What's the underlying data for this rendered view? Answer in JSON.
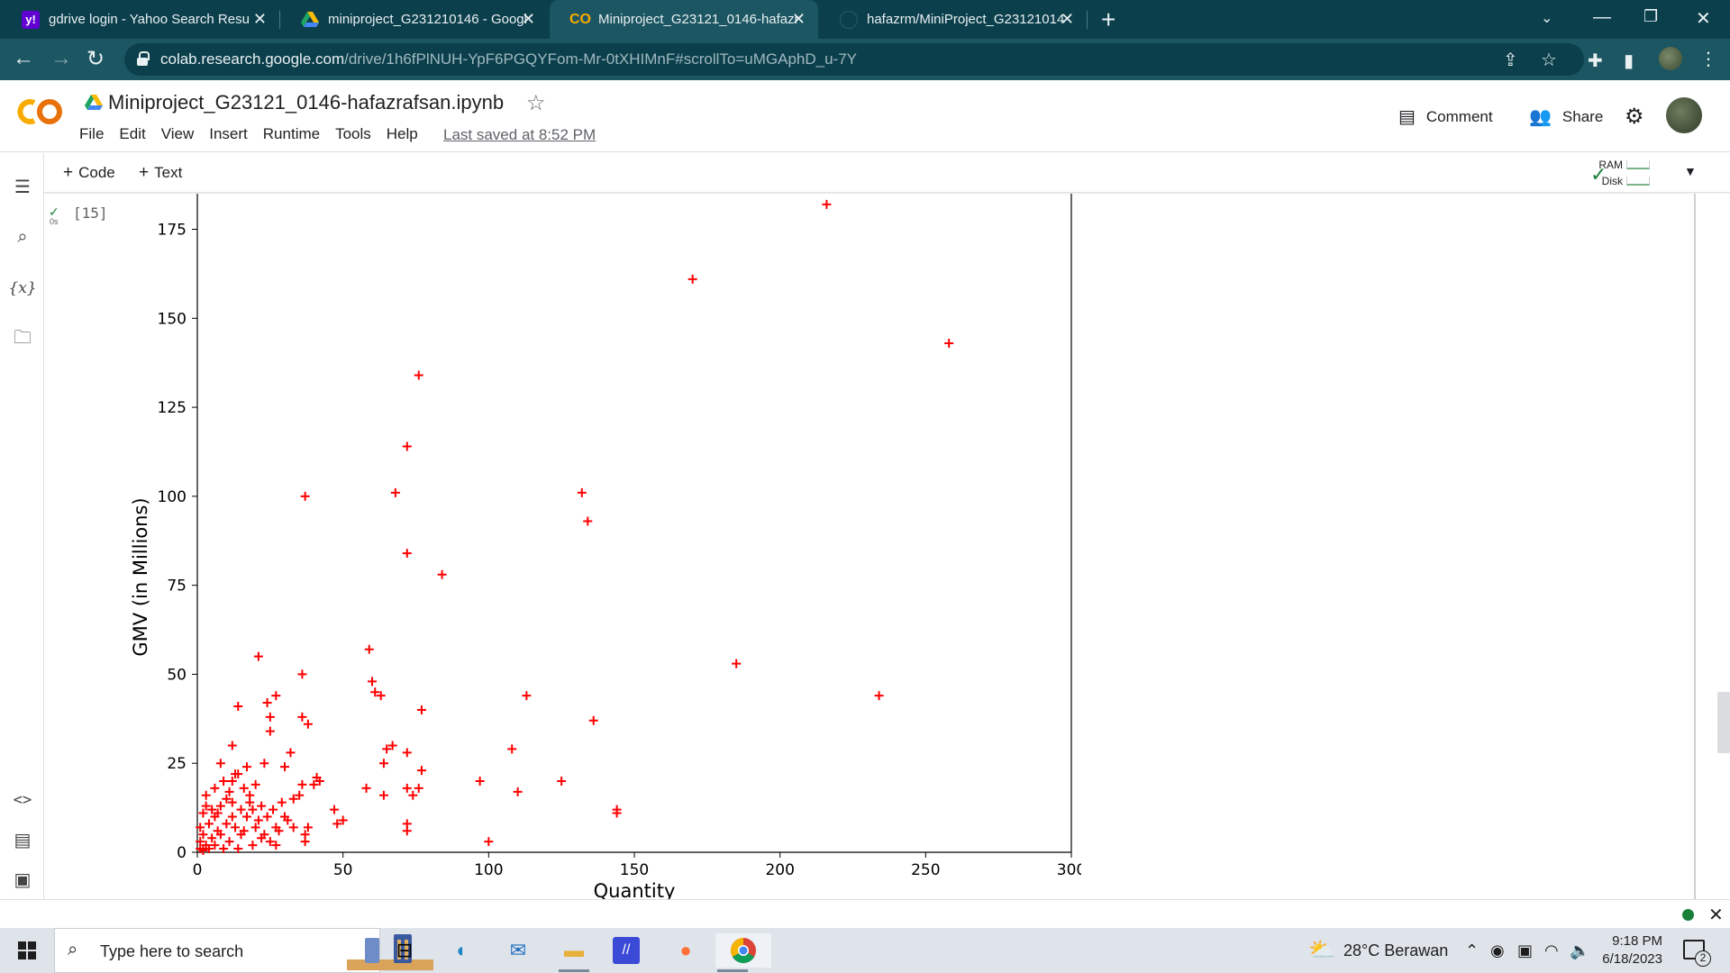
{
  "browser": {
    "tabs": [
      {
        "title": "gdrive login - Yahoo Search Resu",
        "icon": "yahoo-icon",
        "active": false
      },
      {
        "title": "miniproject_G231210146 - Googl",
        "icon": "google-drive-icon",
        "active": false
      },
      {
        "title": "Miniproject_G23121_0146-hafazr",
        "icon": "colab-icon",
        "active": true
      },
      {
        "title": "hafazrm/MiniProject_G23121014",
        "icon": "github-icon",
        "active": false
      }
    ],
    "url_host": "colab.research.google.com",
    "url_rest": "/drive/1h6fPlNUH-YpF6PGQYFom-Mr-0tXHIMnF#scrollTo=uMGAphD_u-7Y"
  },
  "colab": {
    "notebook_title": "Miniproject_G23121_0146-hafazrafsan.ipynb",
    "menu": [
      "File",
      "Edit",
      "View",
      "Insert",
      "Runtime",
      "Tools",
      "Help"
    ],
    "last_saved": "Last saved at 8:52 PM",
    "comment_label": "Comment",
    "share_label": "Share",
    "toolbar": {
      "code_label": "Code",
      "text_label": "Text",
      "ram_label": "RAM",
      "disk_label": "Disk"
    },
    "cell": {
      "exec_count": "[15]",
      "run_time": "0s"
    }
  },
  "chart_data": {
    "type": "scatter",
    "xlabel": "Quantity",
    "ylabel": "GMV (in Millions)",
    "xlim": [
      0,
      300
    ],
    "ylim": [
      0,
      185
    ],
    "xticks": [
      0,
      50,
      100,
      150,
      200,
      250,
      300
    ],
    "yticks": [
      0,
      25,
      50,
      75,
      100,
      125,
      150,
      175
    ],
    "marker": "+",
    "color": "#ff0000",
    "points": [
      [
        216,
        182
      ],
      [
        170,
        161
      ],
      [
        258,
        143
      ],
      [
        76,
        134
      ],
      [
        72,
        114
      ],
      [
        37,
        100
      ],
      [
        68,
        101
      ],
      [
        132,
        101
      ],
      [
        134,
        93
      ],
      [
        72,
        84
      ],
      [
        84,
        78
      ],
      [
        59,
        57
      ],
      [
        185,
        53
      ],
      [
        21,
        55
      ],
      [
        36,
        50
      ],
      [
        60,
        48
      ],
      [
        61,
        45
      ],
      [
        63,
        44
      ],
      [
        113,
        44
      ],
      [
        234,
        44
      ],
      [
        27,
        44
      ],
      [
        24,
        42
      ],
      [
        14,
        41
      ],
      [
        77,
        40
      ],
      [
        36,
        38
      ],
      [
        25,
        38
      ],
      [
        38,
        36
      ],
      [
        136,
        37
      ],
      [
        25,
        34
      ],
      [
        67,
        30
      ],
      [
        65,
        29
      ],
      [
        108,
        29
      ],
      [
        12,
        30
      ],
      [
        72,
        28
      ],
      [
        32,
        28
      ],
      [
        64,
        25
      ],
      [
        8,
        25
      ],
      [
        23,
        25
      ],
      [
        17,
        24
      ],
      [
        30,
        24
      ],
      [
        77,
        23
      ],
      [
        13,
        22
      ],
      [
        12,
        20
      ],
      [
        41,
        21
      ],
      [
        42,
        20
      ],
      [
        40,
        19
      ],
      [
        97,
        20
      ],
      [
        125,
        20
      ],
      [
        58,
        18
      ],
      [
        72,
        18
      ],
      [
        76,
        18
      ],
      [
        16,
        18
      ],
      [
        20,
        19
      ],
      [
        36,
        19
      ],
      [
        110,
        17
      ],
      [
        64,
        16
      ],
      [
        74,
        16
      ],
      [
        35,
        16
      ],
      [
        33,
        15
      ],
      [
        29,
        14
      ],
      [
        10,
        15
      ],
      [
        18,
        14
      ],
      [
        22,
        13
      ],
      [
        8,
        13
      ],
      [
        15,
        12
      ],
      [
        144,
        12
      ],
      [
        144,
        11
      ],
      [
        47,
        12
      ],
      [
        3,
        13
      ],
      [
        5,
        12
      ],
      [
        2,
        11
      ],
      [
        6,
        10
      ],
      [
        12,
        10
      ],
      [
        17,
        10
      ],
      [
        24,
        10
      ],
      [
        30,
        10
      ],
      [
        50,
        9
      ],
      [
        48,
        8
      ],
      [
        72,
        8
      ],
      [
        72,
        6
      ],
      [
        38,
        7
      ],
      [
        33,
        7
      ],
      [
        27,
        7
      ],
      [
        20,
        7
      ],
      [
        10,
        8
      ],
      [
        4,
        8
      ],
      [
        1,
        7
      ],
      [
        2,
        5
      ],
      [
        8,
        5
      ],
      [
        15,
        5
      ],
      [
        23,
        5
      ],
      [
        37,
        5
      ],
      [
        100,
        3
      ],
      [
        37,
        3
      ],
      [
        28,
        6
      ],
      [
        1,
        3
      ],
      [
        3,
        2
      ],
      [
        6,
        2
      ],
      [
        11,
        3
      ],
      [
        19,
        2
      ],
      [
        25,
        3
      ],
      [
        2,
        0.5
      ],
      [
        4,
        1
      ],
      [
        9,
        1
      ],
      [
        14,
        1
      ],
      [
        1,
        1
      ],
      [
        5,
        4
      ],
      [
        7,
        6
      ],
      [
        13,
        7
      ],
      [
        16,
        6
      ],
      [
        21,
        9
      ],
      [
        26,
        12
      ],
      [
        31,
        9
      ],
      [
        18,
        16
      ],
      [
        11,
        17
      ],
      [
        9,
        20
      ],
      [
        14,
        22
      ],
      [
        3,
        16
      ],
      [
        6,
        18
      ],
      [
        19,
        12
      ],
      [
        22,
        4
      ],
      [
        27,
        2
      ],
      [
        12,
        14
      ],
      [
        7,
        11
      ]
    ]
  },
  "taskbar": {
    "search_placeholder": "Type here to search",
    "weather": "28°C  Berawan",
    "time": "9:18 PM",
    "date": "6/18/2023",
    "notification_count": "2"
  }
}
